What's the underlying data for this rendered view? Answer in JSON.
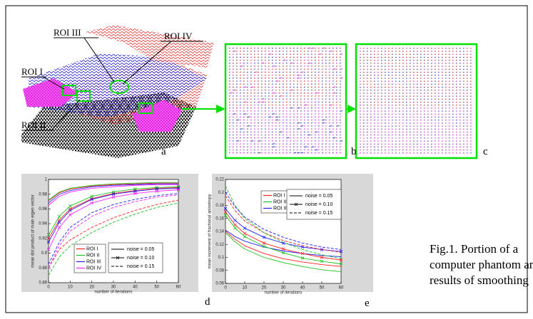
{
  "figure": {
    "roi_labels": [
      "ROI III",
      "ROI IV",
      "ROI I",
      "ROI II"
    ],
    "panel_letters": [
      "a",
      "b",
      "c",
      "d",
      "e"
    ],
    "caption": [
      "Fig.1. Portion of a",
      "computer phantom and",
      "results of smoothing"
    ]
  },
  "chart_data": [
    {
      "type": "line",
      "xlabel": "number of iterations",
      "ylabel": "mean dot product of main eigen vector",
      "x": [
        0,
        5,
        10,
        20,
        30,
        40,
        50,
        60
      ],
      "xlim": [
        0,
        60
      ],
      "xticks": [
        0,
        10,
        20,
        30,
        40,
        50,
        60
      ],
      "ylim": [
        0.86,
        1
      ],
      "yticks": [
        0.86,
        0.88,
        0.9,
        0.92,
        0.94,
        0.96,
        0.98,
        1
      ],
      "color_legend": [
        {
          "name": "ROI I",
          "color": "#ff2020"
        },
        {
          "name": "ROI II",
          "color": "#20c020"
        },
        {
          "name": "ROI III",
          "color": "#2020ff"
        },
        {
          "name": "ROI IV",
          "color": "#ff20ff"
        }
      ],
      "style_legend": [
        {
          "name": "noise = 0.05",
          "dash": "solid",
          "marker": "none"
        },
        {
          "name": "noise = 0.10",
          "dash": "solid",
          "marker": "x"
        },
        {
          "name": "noise = 0.15",
          "dash": "dashed",
          "marker": "none"
        }
      ],
      "series": [
        {
          "color": "#ff2020",
          "dash": "solid",
          "marker": "none",
          "values": [
            0.971,
            0.982,
            0.987,
            0.991,
            0.993,
            0.994,
            0.995,
            0.995
          ]
        },
        {
          "color": "#20c020",
          "dash": "solid",
          "marker": "none",
          "values": [
            0.972,
            0.983,
            0.988,
            0.992,
            0.994,
            0.995,
            0.996,
            0.996
          ]
        },
        {
          "color": "#2020ff",
          "dash": "solid",
          "marker": "none",
          "values": [
            0.968,
            0.98,
            0.985,
            0.99,
            0.992,
            0.993,
            0.994,
            0.994
          ]
        },
        {
          "color": "#ff20ff",
          "dash": "solid",
          "marker": "none",
          "values": [
            0.965,
            0.977,
            0.983,
            0.988,
            0.99,
            0.992,
            0.993,
            0.993
          ]
        },
        {
          "color": "#ff2020",
          "dash": "solid",
          "marker": "x",
          "values": [
            0.92,
            0.945,
            0.96,
            0.974,
            0.981,
            0.985,
            0.988,
            0.989
          ]
        },
        {
          "color": "#20c020",
          "dash": "solid",
          "marker": "x",
          "values": [
            0.925,
            0.95,
            0.964,
            0.977,
            0.983,
            0.987,
            0.989,
            0.99
          ]
        },
        {
          "color": "#2020ff",
          "dash": "solid",
          "marker": "x",
          "values": [
            0.915,
            0.942,
            0.958,
            0.973,
            0.98,
            0.984,
            0.987,
            0.988
          ]
        },
        {
          "color": "#ff20ff",
          "dash": "solid",
          "marker": "x",
          "values": [
            0.905,
            0.935,
            0.952,
            0.968,
            0.976,
            0.981,
            0.984,
            0.986
          ]
        },
        {
          "color": "#ff2020",
          "dash": "dashed",
          "marker": "none",
          "values": [
            0.88,
            0.905,
            0.918,
            0.935,
            0.948,
            0.958,
            0.966,
            0.972
          ]
        },
        {
          "color": "#20c020",
          "dash": "dashed",
          "marker": "none",
          "values": [
            0.87,
            0.895,
            0.91,
            0.928,
            0.942,
            0.953,
            0.962,
            0.968
          ]
        },
        {
          "color": "#2020ff",
          "dash": "dashed",
          "marker": "none",
          "values": [
            0.885,
            0.915,
            0.935,
            0.955,
            0.966,
            0.973,
            0.978,
            0.981
          ]
        },
        {
          "color": "#ff20ff",
          "dash": "dashed",
          "marker": "none",
          "values": [
            0.88,
            0.91,
            0.93,
            0.95,
            0.962,
            0.97,
            0.976,
            0.979
          ]
        }
      ]
    },
    {
      "type": "line",
      "xlabel": "number of iterations",
      "ylabel": "mean increment of fractional anisotropy",
      "x": [
        0,
        5,
        10,
        20,
        30,
        40,
        50,
        60
      ],
      "xlim": [
        0,
        60
      ],
      "xticks": [
        0,
        10,
        20,
        30,
        40,
        50,
        60
      ],
      "ylim": [
        0.06,
        0.22
      ],
      "yticks": [
        0.06,
        0.08,
        0.1,
        0.12,
        0.14,
        0.16,
        0.18,
        0.2,
        0.22
      ],
      "color_legend": [
        {
          "name": "ROI I",
          "color": "#ff2020"
        },
        {
          "name": "ROI II",
          "color": "#20c020"
        },
        {
          "name": "ROI III",
          "color": "#2020ff"
        }
      ],
      "style_legend": [
        {
          "name": "noise = 0.05",
          "dash": "solid",
          "marker": "none"
        },
        {
          "name": "noise = 0.10",
          "dash": "solid",
          "marker": "x"
        },
        {
          "name": "noise = 0.15",
          "dash": "dashed",
          "marker": "none"
        }
      ],
      "series": [
        {
          "color": "#ff2020",
          "dash": "solid",
          "marker": "none",
          "values": [
            0.14,
            0.128,
            0.118,
            0.106,
            0.098,
            0.093,
            0.089,
            0.086
          ]
        },
        {
          "color": "#20c020",
          "dash": "solid",
          "marker": "none",
          "values": [
            0.138,
            0.124,
            0.113,
            0.1,
            0.092,
            0.086,
            0.081,
            0.078
          ]
        },
        {
          "color": "#2020ff",
          "dash": "solid",
          "marker": "none",
          "values": [
            0.142,
            0.132,
            0.125,
            0.116,
            0.11,
            0.106,
            0.103,
            0.101
          ]
        },
        {
          "color": "#ff2020",
          "dash": "solid",
          "marker": "x",
          "values": [
            0.17,
            0.15,
            0.137,
            0.122,
            0.113,
            0.106,
            0.1,
            0.096
          ]
        },
        {
          "color": "#20c020",
          "dash": "solid",
          "marker": "x",
          "values": [
            0.165,
            0.145,
            0.132,
            0.117,
            0.107,
            0.099,
            0.094,
            0.09
          ]
        },
        {
          "color": "#2020ff",
          "dash": "solid",
          "marker": "x",
          "values": [
            0.175,
            0.157,
            0.145,
            0.131,
            0.122,
            0.116,
            0.112,
            0.109
          ]
        },
        {
          "color": "#ff2020",
          "dash": "dashed",
          "marker": "none",
          "values": [
            0.195,
            0.172,
            0.156,
            0.138,
            0.126,
            0.118,
            0.112,
            0.108
          ]
        },
        {
          "color": "#20c020",
          "dash": "dashed",
          "marker": "none",
          "values": [
            0.21,
            0.18,
            0.16,
            0.138,
            0.123,
            0.112,
            0.104,
            0.098
          ]
        },
        {
          "color": "#2020ff",
          "dash": "dashed",
          "marker": "none",
          "values": [
            0.2,
            0.178,
            0.162,
            0.143,
            0.131,
            0.122,
            0.116,
            0.112
          ]
        }
      ]
    }
  ]
}
